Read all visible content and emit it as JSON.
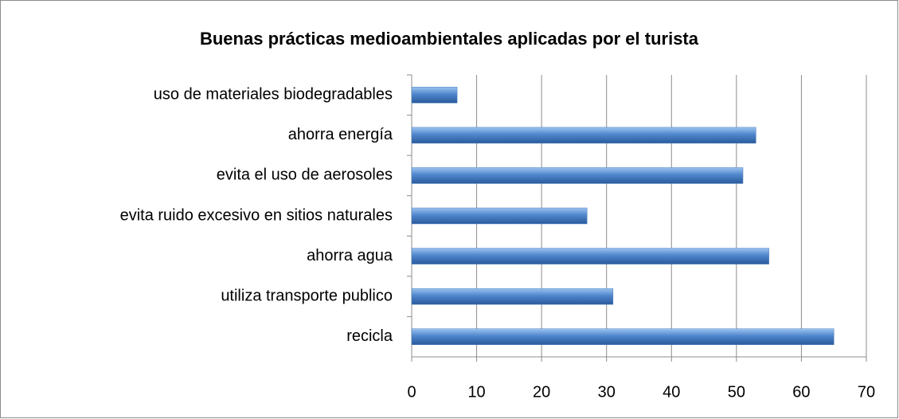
{
  "chart_data": {
    "type": "bar",
    "orientation": "horizontal",
    "title": "Buenas prácticas medioambientales aplicadas por el turista",
    "categories": [
      "uso de materiales biodegradables",
      "ahorra energía",
      "evita el uso de aerosoles",
      "evita ruido excesivo en sitios naturales",
      "ahorra agua",
      "utiliza transporte publico",
      "recicla"
    ],
    "values": [
      7,
      53,
      51,
      27,
      55,
      31,
      65
    ],
    "color": "#4a7ebb",
    "xlim": [
      0,
      70
    ],
    "xticks": [
      0,
      10,
      20,
      30,
      40,
      50,
      60,
      70
    ],
    "grid": true
  }
}
